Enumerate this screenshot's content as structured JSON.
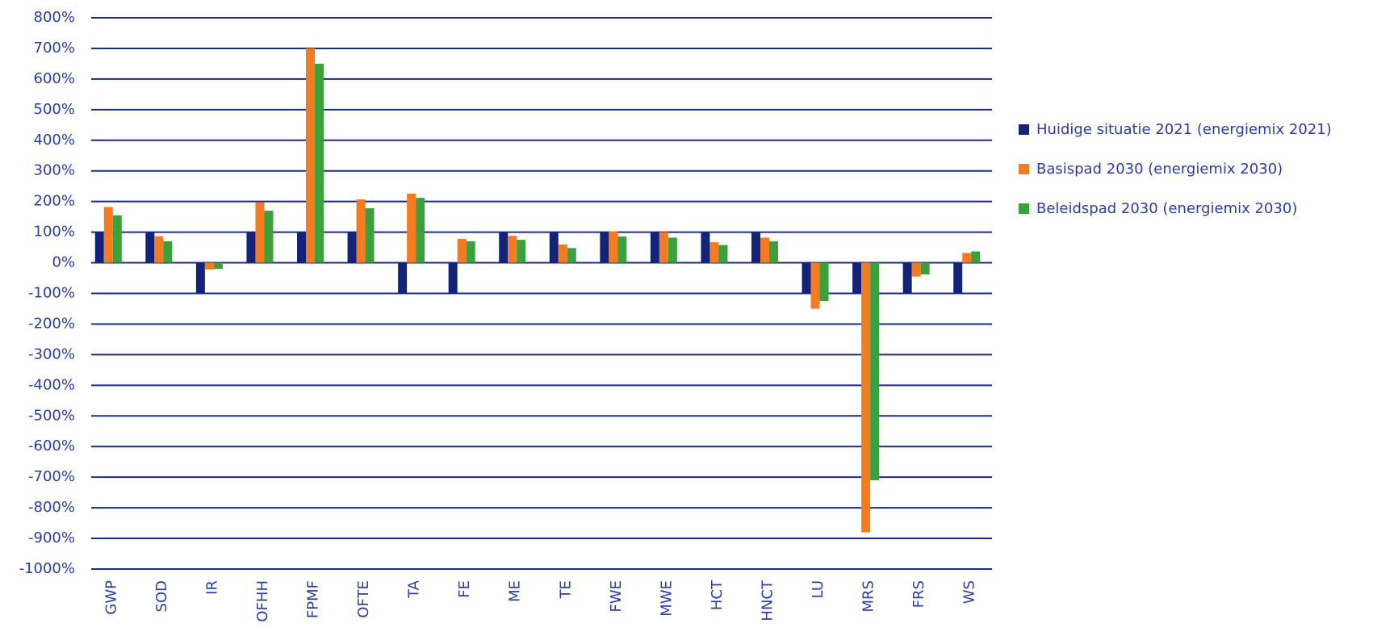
{
  "chart_data": {
    "type": "bar",
    "categories": [
      "GWP",
      "SOD",
      "IR",
      "OFHH",
      "FPMF",
      "OFTE",
      "TA",
      "FE",
      "ME",
      "TE",
      "FWE",
      "MWE",
      "HCT",
      "HNCT",
      "LU",
      "MRS",
      "FRS",
      "WS"
    ],
    "series": [
      {
        "name": "Huidige situatie 2021 (energiemix 2021)",
        "color": "#14237a",
        "values": [
          100,
          100,
          -100,
          100,
          100,
          100,
          -100,
          -100,
          100,
          100,
          100,
          100,
          100,
          100,
          -100,
          -100,
          -100,
          -100
        ]
      },
      {
        "name": "Basispad 2030 (energiemix 2030)",
        "color": "#f47b20",
        "values": [
          182,
          87,
          -22,
          198,
          700,
          207,
          226,
          78,
          88,
          60,
          103,
          100,
          67,
          82,
          -150,
          -880,
          -45,
          32
        ]
      },
      {
        "name": "Beleidspad 2030 (energiemix 2030)",
        "color": "#3ba13c",
        "values": [
          155,
          70,
          -20,
          170,
          650,
          178,
          212,
          70,
          75,
          48,
          86,
          82,
          58,
          70,
          -125,
          -710,
          -38,
          37
        ]
      }
    ],
    "ylim": [
      -1000,
      800
    ],
    "yticks": [
      {
        "value": -1000,
        "label": "-1000%"
      },
      {
        "value": -900,
        "label": "-900%"
      },
      {
        "value": -800,
        "label": "-800%"
      },
      {
        "value": -700,
        "label": "-700%"
      },
      {
        "value": -600,
        "label": "-600%"
      },
      {
        "value": -500,
        "label": "-500%"
      },
      {
        "value": -400,
        "label": "-400%"
      },
      {
        "value": -300,
        "label": "-300%"
      },
      {
        "value": -200,
        "label": "-200%"
      },
      {
        "value": -100,
        "label": "-100%"
      },
      {
        "value": 0,
        "label": "0%"
      },
      {
        "value": 100,
        "label": "100%"
      },
      {
        "value": 200,
        "label": "200%"
      },
      {
        "value": 300,
        "label": "300%"
      },
      {
        "value": 400,
        "label": "400%"
      },
      {
        "value": 500,
        "label": "500%"
      },
      {
        "value": 600,
        "label": "600%"
      },
      {
        "value": 700,
        "label": "700%"
      },
      {
        "value": 800,
        "label": "800%"
      }
    ],
    "grid": true,
    "legend": "right"
  }
}
